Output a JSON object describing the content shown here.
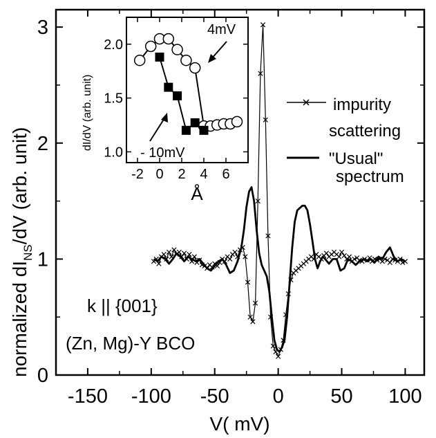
{
  "chart_data": {
    "type": "line",
    "xlabel": "V( mV)",
    "ylabel_main": "normalized dI",
    "ylabel_sub": "NS",
    "ylabel_tail": "/dV (arb. unit)",
    "xlim": [
      -175,
      115
    ],
    "ylim": [
      0,
      3.15
    ],
    "x_ticks": [
      -150,
      -100,
      -50,
      0,
      50,
      100
    ],
    "x_tick_labels": [
      "-150",
      "-100",
      "-50",
      "0",
      "50",
      "100"
    ],
    "y_ticks": [
      0,
      1,
      2,
      3
    ],
    "y_tick_labels": [
      "0",
      "1",
      "2",
      "3"
    ],
    "annotations": [
      "k || {001}",
      "(Zn, Mg)-Y  BCO"
    ],
    "legend": [
      {
        "line1": "impurity",
        "line2": "scattering",
        "style": "line-with-x-markers"
      },
      {
        "line1": "\"Usual\"",
        "line2": "spectrum",
        "style": "thick-line"
      }
    ],
    "series": [
      {
        "name": "impurity scattering",
        "marker": "x",
        "x": [
          -98,
          -96,
          -94,
          -92,
          -90,
          -88,
          -86,
          -84,
          -82,
          -80,
          -78,
          -76,
          -74,
          -72,
          -70,
          -68,
          -66,
          -64,
          -62,
          -60,
          -58,
          -56,
          -54,
          -52,
          -50,
          -48,
          -46,
          -44,
          -42,
          -40,
          -38,
          -36,
          -34,
          -32,
          -30,
          -28,
          -26,
          -24,
          -22,
          -20,
          -18,
          -16,
          -14,
          -12,
          -10,
          -8,
          -6,
          -4,
          -2,
          0,
          2,
          4,
          6,
          8,
          10,
          12,
          14,
          16,
          18,
          20,
          22,
          24,
          26,
          28,
          30,
          32,
          34,
          36,
          38,
          40,
          42,
          44,
          46,
          48,
          50,
          52,
          54,
          56,
          58,
          60,
          62,
          64,
          66,
          68,
          70,
          72,
          74,
          76,
          78,
          80,
          82,
          84,
          86,
          88,
          90,
          92,
          94,
          96,
          98,
          100
        ],
        "y": [
          0.98,
          1.0,
          0.96,
          1.02,
          1.04,
          1.0,
          1.06,
          1.02,
          1.08,
          1.04,
          1.06,
          1.02,
          1.05,
          1.0,
          1.04,
          0.98,
          1.02,
          0.97,
          0.99,
          0.95,
          0.94,
          0.92,
          0.95,
          0.93,
          0.96,
          0.94,
          0.97,
          1.0,
          0.98,
          1.02,
          1.0,
          1.04,
          1.06,
          1.02,
          1.08,
          1.1,
          1.02,
          0.8,
          0.5,
          0.46,
          0.62,
          1.5,
          2.6,
          3.02,
          2.2,
          1.2,
          0.5,
          0.25,
          0.2,
          0.16,
          0.22,
          0.3,
          0.52,
          0.7,
          0.82,
          0.88,
          0.9,
          0.92,
          0.94,
          0.96,
          0.98,
          1.0,
          1.02,
          1.0,
          1.04,
          1.02,
          1.0,
          1.03,
          1.05,
          1.02,
          1.04,
          1.06,
          1.04,
          1.02,
          1.06,
          1.03,
          1.0,
          1.02,
          0.98,
          1.0,
          1.01,
          0.99,
          0.98,
          1.0,
          0.99,
          1.01,
          0.98,
          1.0,
          0.99,
          1.0,
          0.98,
          1.0,
          0.99,
          0.97,
          1.0,
          0.99,
          0.98,
          1.0,
          0.97,
          0.98
        ]
      },
      {
        "name": "\"Usual\" spectrum",
        "marker": "none",
        "x": [
          -98,
          -95,
          -92,
          -89,
          -86,
          -83,
          -80,
          -77,
          -74,
          -71,
          -68,
          -65,
          -62,
          -59,
          -56,
          -53,
          -50,
          -47,
          -44,
          -41,
          -38,
          -35,
          -32,
          -29,
          -27,
          -25,
          -23,
          -21,
          -19,
          -17,
          -15,
          -13,
          -11,
          -9,
          -7,
          -5,
          -3,
          -1,
          1,
          3,
          5,
          7,
          9,
          11,
          13,
          15,
          17,
          19,
          21,
          23,
          25,
          27,
          29,
          31,
          33,
          35,
          37,
          40,
          43,
          46,
          49,
          52,
          55,
          58,
          61,
          64,
          67,
          70,
          73,
          76,
          79,
          82,
          85,
          88,
          91,
          94,
          97,
          100
        ],
        "y": [
          1.0,
          0.98,
          1.02,
          1.0,
          0.96,
          1.0,
          1.05,
          1.02,
          0.98,
          1.02,
          1.0,
          0.98,
          1.0,
          0.96,
          0.92,
          0.9,
          0.94,
          0.98,
          1.0,
          0.95,
          0.88,
          0.9,
          0.98,
          1.1,
          1.25,
          1.45,
          1.58,
          1.62,
          1.5,
          1.25,
          1.05,
          0.95,
          0.9,
          0.85,
          0.72,
          0.5,
          0.3,
          0.22,
          0.2,
          0.24,
          0.3,
          0.5,
          0.8,
          1.1,
          1.32,
          1.42,
          1.44,
          1.46,
          1.46,
          1.42,
          1.3,
          1.15,
          1.0,
          0.92,
          0.98,
          1.02,
          1.0,
          0.96,
          1.0,
          1.0,
          0.9,
          0.92,
          1.0,
          0.98,
          0.95,
          0.98,
          1.0,
          0.98,
          1.0,
          0.97,
          1.02,
          1.0,
          1.06,
          1.1,
          1.02,
          0.98,
          1.0,
          0.98
        ]
      }
    ],
    "inset": {
      "xlabel": "Å",
      "ylabel": "dI/dV (arb. unit)",
      "xlim": [
        -3,
        8
      ],
      "ylim": [
        0.9,
        2.25
      ],
      "x_ticks": [
        -2,
        0,
        2,
        4,
        6
      ],
      "x_tick_labels": [
        "-2",
        "0",
        "2",
        "4",
        "6"
      ],
      "y_ticks": [
        1.0,
        1.5,
        2.0
      ],
      "y_tick_labels": [
        "1.0",
        "1.5",
        "2.0"
      ],
      "annotations": [
        "4mV",
        "- 10mV"
      ],
      "series": [
        {
          "label": "4mV",
          "marker": "open-circle",
          "x": [
            -1.8,
            -0.8,
            0.0,
            0.8,
            1.6,
            2.4,
            3.2,
            4.0,
            4.6,
            5.2,
            5.8,
            6.4,
            7.0
          ],
          "y": [
            1.85,
            1.98,
            2.05,
            2.05,
            1.95,
            1.85,
            1.78,
            1.24,
            1.24,
            1.25,
            1.26,
            1.26,
            1.28
          ]
        },
        {
          "label": "- 10mV",
          "marker": "filled-square",
          "x": [
            0.0,
            0.8,
            1.6,
            2.4,
            3.2,
            4.0
          ],
          "y": [
            1.88,
            1.6,
            1.52,
            1.2,
            1.27,
            1.2
          ]
        }
      ]
    }
  }
}
